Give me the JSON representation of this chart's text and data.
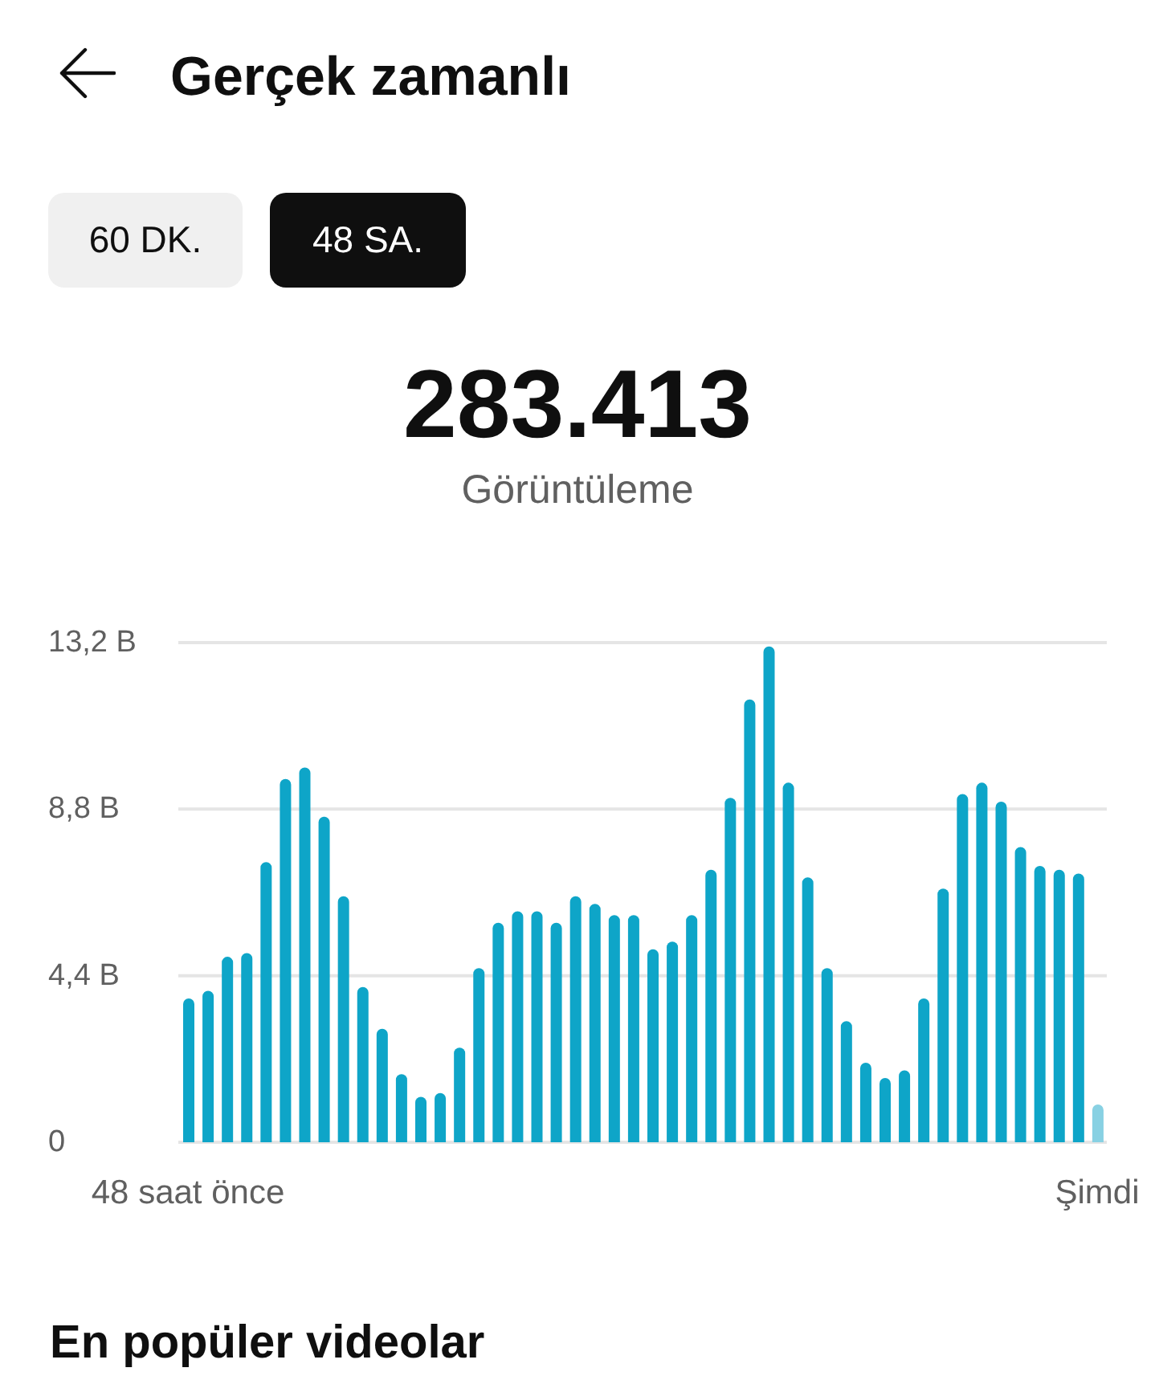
{
  "chart_data": {
    "type": "bar",
    "title": "Gerçek zamanlı",
    "subtitle": "283.413",
    "annotations": [
      "60 DK.",
      "48 SA.",
      "Görüntüleme",
      "En popüler videolar"
    ],
    "categories": [
      "48 saat önce",
      null,
      null,
      null,
      null,
      null,
      null,
      null,
      null,
      null,
      null,
      null,
      null,
      null,
      null,
      null,
      null,
      null,
      null,
      null,
      null,
      null,
      null,
      null,
      null,
      null,
      null,
      null,
      null,
      null,
      null,
      null,
      null,
      null,
      null,
      null,
      null,
      null,
      null,
      null,
      null,
      null,
      null,
      null,
      null,
      null,
      null,
      "Şimdi"
    ],
    "values": [
      3.8,
      4.0,
      4.9,
      5.0,
      7.4,
      9.6,
      9.9,
      8.6,
      6.5,
      4.1,
      3.0,
      1.8,
      1.2,
      1.3,
      2.5,
      4.6,
      5.8,
      6.1,
      6.1,
      5.8,
      6.5,
      6.3,
      6.0,
      6.0,
      5.1,
      5.3,
      6.0,
      7.2,
      9.1,
      11.7,
      13.1,
      9.5,
      7.0,
      4.6,
      3.2,
      2.1,
      1.7,
      1.9,
      3.8,
      6.7,
      9.2,
      9.5,
      9.0,
      7.8,
      7.3,
      7.2,
      7.1,
      1.0
    ],
    "colors": [
      "#0ea5c8",
      "#0ea5c8",
      "#0ea5c8",
      "#0ea5c8",
      "#0ea5c8",
      "#0ea5c8",
      "#0ea5c8",
      "#0ea5c8",
      "#0ea5c8",
      "#0ea5c8",
      "#0ea5c8",
      "#0ea5c8",
      "#0ea5c8",
      "#0ea5c8",
      "#0ea5c8",
      "#0ea5c8",
      "#0ea5c8",
      "#0ea5c8",
      "#0ea5c8",
      "#0ea5c8",
      "#0ea5c8",
      "#0ea5c8",
      "#0ea5c8",
      "#0ea5c8",
      "#0ea5c8",
      "#0ea5c8",
      "#0ea5c8",
      "#0ea5c8",
      "#0ea5c8",
      "#0ea5c8",
      "#0ea5c8",
      "#0ea5c8",
      "#0ea5c8",
      "#0ea5c8",
      "#0ea5c8",
      "#0ea5c8",
      "#0ea5c8",
      "#0ea5c8",
      "#0ea5c8",
      "#0ea5c8",
      "#0ea5c8",
      "#0ea5c8",
      "#0ea5c8",
      "#0ea5c8",
      "#0ea5c8",
      "#0ea5c8",
      "#0ea5c8",
      "#88d1e3"
    ],
    "ylim": [
      0,
      13.2
    ],
    "yticks": [
      0,
      {
        "value": 4.4,
        "label": "4,4 B"
      },
      {
        "value": 8.8,
        "label": "8,8 B"
      },
      {
        "value": 13.2,
        "label": "13,2 B"
      }
    ],
    "grid": "y"
  }
}
